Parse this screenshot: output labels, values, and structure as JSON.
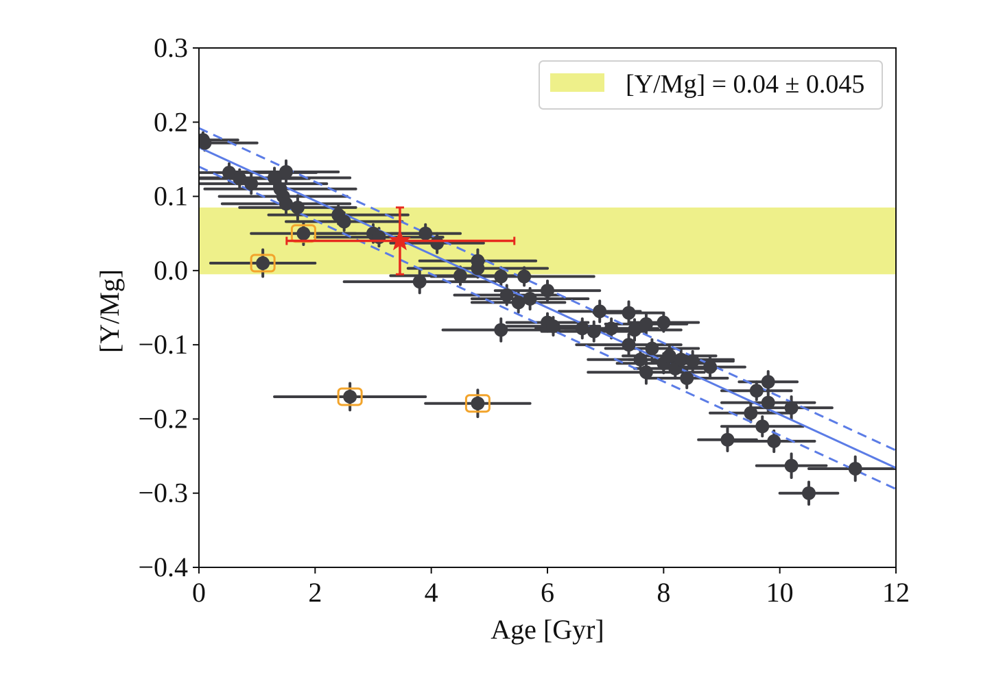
{
  "chart_data": {
    "type": "scatter",
    "title": "",
    "xlabel": "Age [Gyr]",
    "ylabel": "[Y/Mg]",
    "xlim": [
      0,
      12
    ],
    "ylim": [
      -0.4,
      0.3
    ],
    "xticks": [
      0,
      2,
      4,
      6,
      8,
      10,
      12
    ],
    "xtick_labels": [
      "0",
      "2",
      "4",
      "6",
      "8",
      "10",
      "12"
    ],
    "yticks": [
      0.3,
      0.2,
      0.1,
      0.0,
      -0.1,
      -0.2,
      -0.3,
      -0.4
    ],
    "ytick_labels": [
      "0.3",
      "0.2",
      "0.1",
      "0.0",
      "−0.1",
      "−0.2",
      "−0.3",
      "−0.4"
    ],
    "grid": false,
    "legend": {
      "placement": "top-right",
      "entries": [
        {
          "label": "[Y/Mg] = 0.04 ± 0.045",
          "type": "band",
          "color": "#eef08a"
        }
      ]
    },
    "band": {
      "center": 0.04,
      "halfwidth": 0.045,
      "color": "#eef08a"
    },
    "fit": {
      "intercept": 0.166,
      "slope": -0.036,
      "upper": {
        "intercept": 0.192,
        "slope": -0.0362
      },
      "lower": {
        "intercept": 0.14,
        "slope": -0.0362
      },
      "color": "#5b7ce6"
    },
    "target_star": {
      "x": 3.46,
      "y": 0.04,
      "xerr_low": 1.95,
      "xerr_high": 1.97,
      "yerr": 0.045,
      "color": "#e62a1e"
    },
    "series": [
      {
        "name": "stars",
        "color": "#3d3d42",
        "points": [
          {
            "x": 0.07,
            "y": 0.176,
            "xerr": 0.6,
            "yerr": 0.01
          },
          {
            "x": 0.1,
            "y": 0.172,
            "xerr": 0.9,
            "yerr": 0.01
          },
          {
            "x": 0.52,
            "y": 0.132,
            "xerr": 1.5,
            "yerr": 0.012
          },
          {
            "x": 0.7,
            "y": 0.124,
            "xerr": 1.2,
            "yerr": 0.012
          },
          {
            "x": 0.9,
            "y": 0.117,
            "xerr": 1.3,
            "yerr": 0.013
          },
          {
            "x": 1.3,
            "y": 0.125,
            "xerr": 1.3,
            "yerr": 0.013
          },
          {
            "x": 1.5,
            "y": 0.133,
            "xerr": 0.9,
            "yerr": 0.015
          },
          {
            "x": 1.4,
            "y": 0.11,
            "xerr": 1.3,
            "yerr": 0.013
          },
          {
            "x": 1.45,
            "y": 0.1,
            "xerr": 1.1,
            "yerr": 0.012
          },
          {
            "x": 1.5,
            "y": 0.09,
            "xerr": 1.1,
            "yerr": 0.013
          },
          {
            "x": 1.7,
            "y": 0.085,
            "xerr": 1.0,
            "yerr": 0.016
          },
          {
            "x": 2.4,
            "y": 0.075,
            "xerr": 1.2,
            "yerr": 0.012
          },
          {
            "x": 2.5,
            "y": 0.066,
            "xerr": 1.0,
            "yerr": 0.012
          },
          {
            "x": 3.0,
            "y": 0.05,
            "xerr": 1.0,
            "yerr": 0.012
          },
          {
            "x": 3.1,
            "y": 0.045,
            "xerr": 1.1,
            "yerr": 0.012
          },
          {
            "x": 3.9,
            "y": 0.05,
            "xerr": 0.6,
            "yerr": 0.012
          },
          {
            "x": 4.1,
            "y": 0.037,
            "xerr": 0.8,
            "yerr": 0.013
          },
          {
            "x": 3.8,
            "y": -0.015,
            "xerr": 1.3,
            "yerr": 0.015
          },
          {
            "x": 4.5,
            "y": -0.007,
            "xerr": 1.2,
            "yerr": 0.012
          },
          {
            "x": 4.8,
            "y": 0.013,
            "xerr": 1.0,
            "yerr": 0.015
          },
          {
            "x": 4.8,
            "y": 0.003,
            "xerr": 1.2,
            "yerr": 0.012
          },
          {
            "x": 5.2,
            "y": -0.008,
            "xerr": 1.2,
            "yerr": 0.012
          },
          {
            "x": 5.6,
            "y": -0.008,
            "xerr": 1.2,
            "yerr": 0.012
          },
          {
            "x": 5.3,
            "y": -0.033,
            "xerr": 0.9,
            "yerr": 0.013
          },
          {
            "x": 5.5,
            "y": -0.043,
            "xerr": 0.8,
            "yerr": 0.013
          },
          {
            "x": 5.7,
            "y": -0.038,
            "xerr": 1.0,
            "yerr": 0.014
          },
          {
            "x": 6.0,
            "y": -0.027,
            "xerr": 0.9,
            "yerr": 0.013
          },
          {
            "x": 5.2,
            "y": -0.08,
            "xerr": 1.0,
            "yerr": 0.015
          },
          {
            "x": 6.0,
            "y": -0.07,
            "xerr": 0.7,
            "yerr": 0.012
          },
          {
            "x": 6.1,
            "y": -0.075,
            "xerr": 0.8,
            "yerr": 0.012
          },
          {
            "x": 6.6,
            "y": -0.078,
            "xerr": 0.8,
            "yerr": 0.013
          },
          {
            "x": 6.8,
            "y": -0.082,
            "xerr": 0.9,
            "yerr": 0.013
          },
          {
            "x": 6.9,
            "y": -0.055,
            "xerr": 0.7,
            "yerr": 0.014
          },
          {
            "x": 7.1,
            "y": -0.078,
            "xerr": 0.8,
            "yerr": 0.013
          },
          {
            "x": 7.4,
            "y": -0.057,
            "xerr": 0.6,
            "yerr": 0.015
          },
          {
            "x": 7.5,
            "y": -0.08,
            "xerr": 0.8,
            "yerr": 0.014
          },
          {
            "x": 7.4,
            "y": -0.1,
            "xerr": 0.9,
            "yerr": 0.014
          },
          {
            "x": 7.7,
            "y": -0.072,
            "xerr": 0.7,
            "yerr": 0.013
          },
          {
            "x": 7.8,
            "y": -0.105,
            "xerr": 0.8,
            "yerr": 0.012
          },
          {
            "x": 8.0,
            "y": -0.07,
            "xerr": 0.6,
            "yerr": 0.012
          },
          {
            "x": 7.6,
            "y": -0.12,
            "xerr": 0.9,
            "yerr": 0.013
          },
          {
            "x": 7.7,
            "y": -0.137,
            "xerr": 1.0,
            "yerr": 0.015
          },
          {
            "x": 8.0,
            "y": -0.125,
            "xerr": 0.8,
            "yerr": 0.013
          },
          {
            "x": 8.1,
            "y": -0.115,
            "xerr": 0.8,
            "yerr": 0.013
          },
          {
            "x": 8.2,
            "y": -0.132,
            "xerr": 0.7,
            "yerr": 0.013
          },
          {
            "x": 8.3,
            "y": -0.12,
            "xerr": 0.9,
            "yerr": 0.014
          },
          {
            "x": 8.4,
            "y": -0.145,
            "xerr": 0.7,
            "yerr": 0.013
          },
          {
            "x": 8.5,
            "y": -0.122,
            "xerr": 0.7,
            "yerr": 0.013
          },
          {
            "x": 8.8,
            "y": -0.13,
            "xerr": 0.6,
            "yerr": 0.014
          },
          {
            "x": 9.1,
            "y": -0.228,
            "xerr": 0.5,
            "yerr": 0.015
          },
          {
            "x": 9.5,
            "y": -0.192,
            "xerr": 0.7,
            "yerr": 0.012
          },
          {
            "x": 9.6,
            "y": -0.162,
            "xerr": 0.6,
            "yerr": 0.012
          },
          {
            "x": 9.7,
            "y": -0.21,
            "xerr": 0.7,
            "yerr": 0.013
          },
          {
            "x": 9.8,
            "y": -0.15,
            "xerr": 0.5,
            "yerr": 0.014
          },
          {
            "x": 9.8,
            "y": -0.178,
            "xerr": 0.8,
            "yerr": 0.013
          },
          {
            "x": 9.9,
            "y": -0.23,
            "xerr": 0.7,
            "yerr": 0.014
          },
          {
            "x": 10.2,
            "y": -0.185,
            "xerr": 0.7,
            "yerr": 0.015
          },
          {
            "x": 10.2,
            "y": -0.263,
            "xerr": 0.6,
            "yerr": 0.016
          },
          {
            "x": 10.5,
            "y": -0.3,
            "xerr": 0.5,
            "yerr": 0.015
          },
          {
            "x": 11.3,
            "y": -0.267,
            "xerr": 0.8,
            "yerr": 0.016
          }
        ]
      },
      {
        "name": "flagged-outliers",
        "color": "#3d3d42",
        "marker_edge": "#f2a42c",
        "points": [
          {
            "x": 1.1,
            "y": 0.01,
            "xerr": 0.9,
            "yerr": 0.018
          },
          {
            "x": 1.8,
            "y": 0.05,
            "xerr": 0.9,
            "yerr": 0.015
          },
          {
            "x": 2.6,
            "y": -0.17,
            "xerr": 1.3,
            "yerr": 0.018
          },
          {
            "x": 4.8,
            "y": -0.179,
            "xerr": 0.9,
            "yerr": 0.018
          }
        ]
      }
    ]
  }
}
